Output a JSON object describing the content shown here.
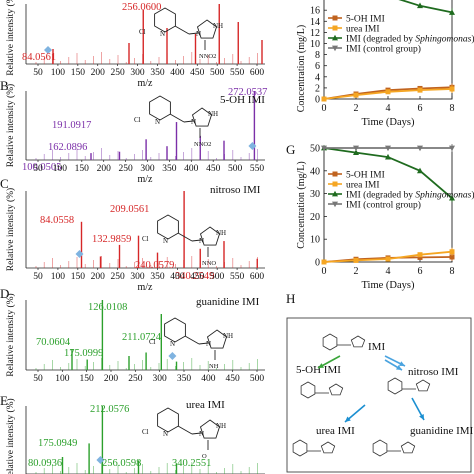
{
  "panel_letters": {
    "b": "B",
    "c": "C",
    "d": "D",
    "e": "E",
    "g": "G",
    "h": "H"
  },
  "ms_common": {
    "ylabel": "Relative intensity (%)",
    "xlabel": "m/z"
  },
  "spectra": [
    {
      "id": "a",
      "compound": "",
      "peaks": [
        {
          "label": "84.0561",
          "color": "#d62728"
        },
        {
          "label": "256.0600",
          "color": "#d62728"
        }
      ],
      "xticks": [
        "50",
        "100",
        "150",
        "200",
        "250",
        "300",
        "350",
        "400",
        "450",
        "500",
        "550",
        "600"
      ],
      "xlabel": "m/z"
    },
    {
      "id": "b",
      "compound": "5-OH IMI",
      "peaks": [
        {
          "label": "272.0537",
          "color": "#7b2fa8"
        },
        {
          "label": "191.0917",
          "color": "#7b2fa8"
        },
        {
          "label": "162.0896",
          "color": "#7b2fa8"
        },
        {
          "label": "100.0505",
          "color": "#7b2fa8"
        }
      ],
      "xticks": [
        "50",
        "100",
        "150",
        "200",
        "250",
        "300",
        "350",
        "400",
        "450",
        "500",
        "550"
      ],
      "xlabel": "m/z"
    },
    {
      "id": "c",
      "compound": "nitroso IMI",
      "peaks": [
        {
          "label": "84.0558",
          "color": "#d62728"
        },
        {
          "label": "209.0561",
          "color": "#d62728"
        },
        {
          "label": "132.9859",
          "color": "#d62728"
        },
        {
          "label": "240.0579",
          "color": "#d62728"
        },
        {
          "label": "340.2549",
          "color": "#d62728"
        }
      ],
      "xticks": [
        "50",
        "100",
        "150",
        "200",
        "250",
        "300",
        "350",
        "400",
        "450",
        "500",
        "550",
        "600"
      ],
      "xlabel": "m/z"
    },
    {
      "id": "d",
      "compound": "guanidine IMI",
      "peaks": [
        {
          "label": "126.0108",
          "color": "#2ca02c"
        },
        {
          "label": "211.0724",
          "color": "#2ca02c"
        },
        {
          "label": "70.0604",
          "color": "#2ca02c"
        },
        {
          "label": "175.0999",
          "color": "#2ca02c"
        }
      ],
      "xticks": [
        "50",
        "100",
        "150",
        "200",
        "250",
        "300",
        "350",
        "400",
        "450",
        "500"
      ],
      "xlabel": ""
    },
    {
      "id": "e",
      "compound": "urea IMI",
      "peaks": [
        {
          "label": "212.0576",
          "color": "#2ca02c"
        },
        {
          "label": "175.0949",
          "color": "#2ca02c"
        },
        {
          "label": "80.0936",
          "color": "#2ca02c"
        },
        {
          "label": "256.0598",
          "color": "#2ca02c"
        },
        {
          "label": "340.2551",
          "color": "#2ca02c"
        }
      ],
      "xticks": [],
      "xlabel": ""
    }
  ],
  "chart_data": [
    {
      "type": "line",
      "panel": "F (partially visible)",
      "xlabel": "Time (Days)",
      "ylabel": "Concentration (mg/L)",
      "x": [
        0,
        2,
        4,
        6,
        8
      ],
      "xlim": [
        0,
        8
      ],
      "ylim": [
        0,
        20
      ],
      "yticks": [
        "0",
        "2",
        "4",
        "6",
        "8",
        "10",
        "12",
        "14",
        "16",
        "18",
        "20"
      ],
      "xticks": [
        "0",
        "2",
        "4",
        "6",
        "8"
      ],
      "legend_position": "left",
      "series": [
        {
          "name": "5-OH IMI",
          "color": "#c0631f",
          "marker": "square",
          "values": [
            0,
            0.9,
            1.6,
            1.9,
            2.1
          ]
        },
        {
          "name": "urea IMI",
          "color": "#f5a623",
          "marker": "square",
          "values": [
            0,
            0.7,
            1.3,
            1.6,
            1.8
          ]
        },
        {
          "name": "IMI (degraded by Sphingomonas)",
          "color": "#1f6b1f",
          "marker": "triangle",
          "values": [
            20.5,
            19.8,
            18.6,
            16.8,
            15.6
          ]
        },
        {
          "name": "IMI (control group)",
          "color": "#777777",
          "marker": "inv-triangle",
          "values": [
            null,
            null,
            null,
            null,
            null
          ]
        }
      ]
    },
    {
      "type": "line",
      "panel": "G",
      "xlabel": "Time (Days)",
      "ylabel": "Concentration (mg/L)",
      "x": [
        0,
        2,
        4,
        6,
        8
      ],
      "xlim": [
        0,
        8
      ],
      "ylim": [
        0,
        50
      ],
      "yticks": [
        "0",
        "10",
        "20",
        "30",
        "40",
        "50"
      ],
      "xticks": [
        "0",
        "2",
        "4",
        "6",
        "8"
      ],
      "legend_position": "left",
      "series": [
        {
          "name": "5-OH IMI",
          "color": "#c0631f",
          "marker": "square",
          "values": [
            0,
            1.2,
            1.8,
            2.0,
            2.2
          ]
        },
        {
          "name": "urea IMI",
          "color": "#f5a623",
          "marker": "square",
          "values": [
            0,
            0.7,
            1.3,
            3.2,
            4.5
          ]
        },
        {
          "name": "IMI (degraded by Sphingomonas)",
          "color": "#1f6b1f",
          "marker": "triangle",
          "values": [
            50,
            48,
            46,
            40,
            28
          ]
        },
        {
          "name": "IMI (control group)",
          "color": "#777777",
          "marker": "inv-triangle",
          "values": [
            50,
            50,
            50,
            50,
            50
          ]
        }
      ]
    }
  ],
  "pathway": {
    "title": "H",
    "nodes": [
      "IMI",
      "5-OH IMI",
      "nitroso IMI",
      "urea IMI",
      "guanidine IMI"
    ]
  }
}
